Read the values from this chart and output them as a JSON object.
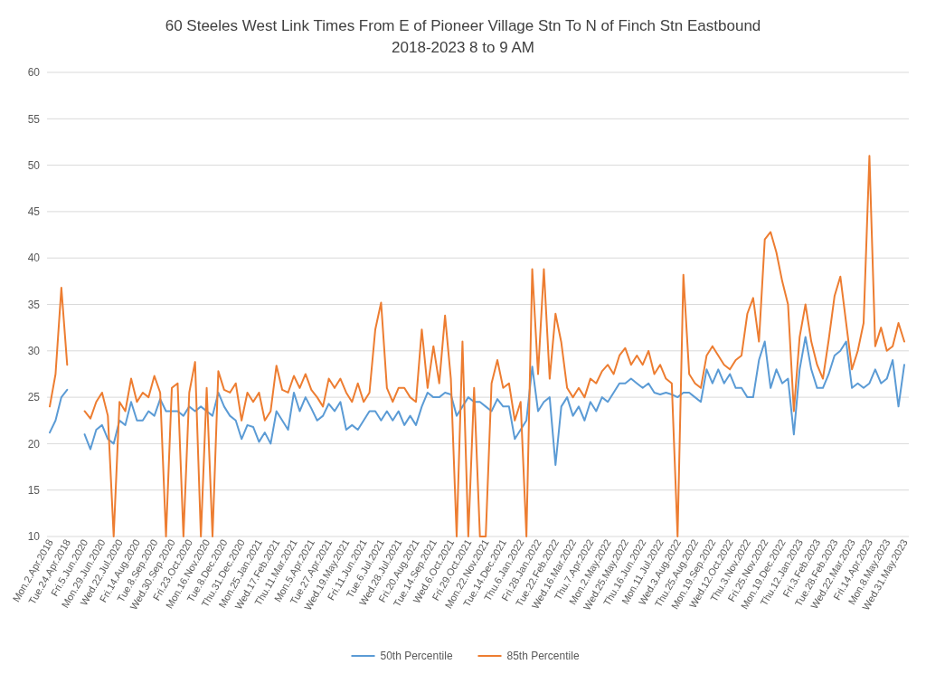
{
  "chart_data": {
    "type": "line",
    "title": "60 Steeles West Link Times From E of Pioneer Village Stn To N of Finch Stn Eastbound",
    "subtitle": "2018-2023 8 to 9 AM",
    "categories": [
      "Mon.2.Apr.2018",
      null,
      null,
      "Tue.24.Apr.2018",
      null,
      null,
      "Fri.5.Jun.2020",
      null,
      null,
      "Mon.29.Jun.2020",
      null,
      null,
      "Wed.22.Jul.2020",
      null,
      null,
      "Fri.14.Aug.2020",
      null,
      null,
      "Tue.8.Sep.2020",
      null,
      null,
      "Wed.30.Sep.2020",
      null,
      null,
      "Fri.23.Oct.2020",
      null,
      null,
      "Mon.16.Nov.2020",
      null,
      null,
      "Tue.8.Dec.2020",
      null,
      null,
      "Thu.31.Dec.2020",
      null,
      null,
      "Mon.25.Jan.2021",
      null,
      null,
      "Wed.17.Feb.2021",
      null,
      null,
      "Thu.11.Mar.2021",
      null,
      null,
      "Mon.5.Apr.2021",
      null,
      null,
      "Tue.27.Apr.2021",
      null,
      null,
      "Wed.19.May.2021",
      null,
      null,
      "Fri.11.Jun.2021",
      null,
      null,
      "Tue.6.Jul.2021",
      null,
      null,
      "Wed.28.Jul.2021",
      null,
      null,
      "Fri.20.Aug.2021",
      null,
      null,
      "Tue.14.Sep.2021",
      null,
      null,
      "Wed.6.Oct.2021",
      null,
      null,
      "Fri.29.Oct.2021",
      null,
      null,
      "Mon.22.Nov.2021",
      null,
      null,
      "Tue.14.Dec.2021",
      null,
      null,
      "Thu.6.Jan.2022",
      null,
      null,
      "Fri.28.Jan.2022",
      null,
      null,
      "Tue.22.Feb.2022",
      null,
      null,
      "Wed.16.Mar.2022",
      null,
      null,
      "Thu.7.Apr.2022",
      null,
      null,
      "Mon.2.May.2022",
      null,
      null,
      "Wed.25.May.2022",
      null,
      null,
      "Thu.16.Jun.2022",
      null,
      null,
      "Mon.11.Jul.2022",
      null,
      null,
      "Wed.3.Aug.2022",
      null,
      null,
      "Thu.25.Aug.2022",
      null,
      null,
      "Mon.19.Sep.2022",
      null,
      null,
      "Wed.12.Oct.2022",
      null,
      null,
      "Thu.3.Nov.2022",
      null,
      null,
      "Fri.25.Nov.2022",
      null,
      null,
      "Mon.19.Dec.2022",
      null,
      null,
      "Thu.12.Jan.2023",
      null,
      null,
      "Fri.3.Feb.2023",
      null,
      null,
      "Tue.28.Feb.2023",
      null,
      null,
      "Wed.22.Mar.2023",
      null,
      null,
      "Fri.14.Apr.2023",
      null,
      null,
      "Mon.8.May.2023",
      null,
      null,
      "Wed.31.May.2023"
    ],
    "series": [
      {
        "name": "50th Percentile",
        "color": "#5b9bd5",
        "values": [
          21.2,
          22.5,
          25,
          25.8,
          null,
          null,
          21,
          19.4,
          21.5,
          22,
          20.5,
          20,
          22.5,
          22,
          24.5,
          22.5,
          22.5,
          23.5,
          23,
          24.8,
          23.5,
          23.5,
          23.5,
          23,
          24,
          23.5,
          24,
          23.5,
          23,
          25.5,
          24,
          23,
          22.5,
          20.5,
          22,
          21.8,
          20.2,
          21.2,
          20,
          23.5,
          22.5,
          21.5,
          25.5,
          23.5,
          25,
          23.8,
          22.5,
          23,
          24.3,
          23.5,
          24.5,
          21.5,
          22,
          21.5,
          22.5,
          23.5,
          23.5,
          22.5,
          23.5,
          22.5,
          23.5,
          22,
          23,
          22,
          24,
          25.5,
          25,
          25,
          25.5,
          25.3,
          23,
          24,
          25,
          24.5,
          24.5,
          24,
          23.5,
          24.8,
          24,
          24,
          20.5,
          21.5,
          22.5,
          28.3,
          23.5,
          24.5,
          25,
          17.7,
          24,
          25,
          23,
          24,
          22.5,
          24.5,
          23.5,
          25,
          24.5,
          25.5,
          26.5,
          26.5,
          27,
          26.5,
          26,
          26.5,
          25.5,
          25.3,
          25.5,
          25.3,
          25,
          25.5,
          25.5,
          25,
          24.5,
          28,
          26.5,
          28,
          26.5,
          27.5,
          26,
          26,
          25,
          25,
          29,
          31,
          26,
          28,
          26.5,
          27,
          21,
          28,
          31.5,
          28,
          26,
          26,
          27.5,
          29.5,
          30,
          31,
          26,
          26.5,
          26,
          26.5,
          28,
          26.5,
          27,
          29,
          24,
          28.5
        ]
      },
      {
        "name": "85th Percentile",
        "color": "#ed7d31",
        "values": [
          24,
          27.5,
          36.8,
          28.5,
          null,
          null,
          23.5,
          22.7,
          24.5,
          25.5,
          23,
          10,
          24.5,
          23.5,
          27,
          24.5,
          25.5,
          25,
          27.3,
          25.5,
          10,
          26,
          26.5,
          10,
          25.5,
          28.8,
          10,
          26,
          10,
          27.8,
          25.8,
          25.5,
          26.5,
          22.5,
          25.5,
          24.5,
          25.5,
          22.5,
          23.5,
          28.4,
          25.8,
          25.5,
          27.3,
          26,
          27.5,
          25.8,
          25,
          24,
          27,
          26,
          27,
          25.5,
          24.5,
          26.5,
          24.5,
          25.5,
          32.3,
          35.2,
          26,
          24.5,
          26,
          26,
          25,
          24.5,
          32.3,
          26,
          30.5,
          26.5,
          33.8,
          27,
          10,
          31,
          10,
          26,
          10,
          10,
          26.5,
          29,
          26,
          26.5,
          22.5,
          24.5,
          10,
          38.8,
          27.5,
          38.8,
          27,
          34,
          30.9,
          26,
          25,
          26,
          25,
          27,
          26.5,
          27.8,
          28.5,
          27.5,
          29.5,
          30.3,
          28.5,
          29.5,
          28.5,
          30,
          27.5,
          28.5,
          27,
          26.5,
          10,
          38.2,
          27.5,
          26.5,
          26,
          29.5,
          30.5,
          29.5,
          28.5,
          28,
          29,
          29.5,
          34,
          35.7,
          31,
          42,
          42.8,
          40.6,
          37.5,
          35,
          23.5,
          31.5,
          35,
          31,
          28.5,
          27,
          31.2,
          35.9,
          38,
          33,
          28,
          30,
          33,
          51,
          30.5,
          32.5,
          30,
          30.5,
          33,
          31
        ]
      }
    ],
    "ylim": [
      10,
      60
    ],
    "yticks": [
      10,
      15,
      20,
      25,
      30,
      35,
      40,
      45,
      50,
      55,
      60
    ],
    "grid": "y",
    "legend": "bottom",
    "marker": "none",
    "line_style": "solid"
  }
}
